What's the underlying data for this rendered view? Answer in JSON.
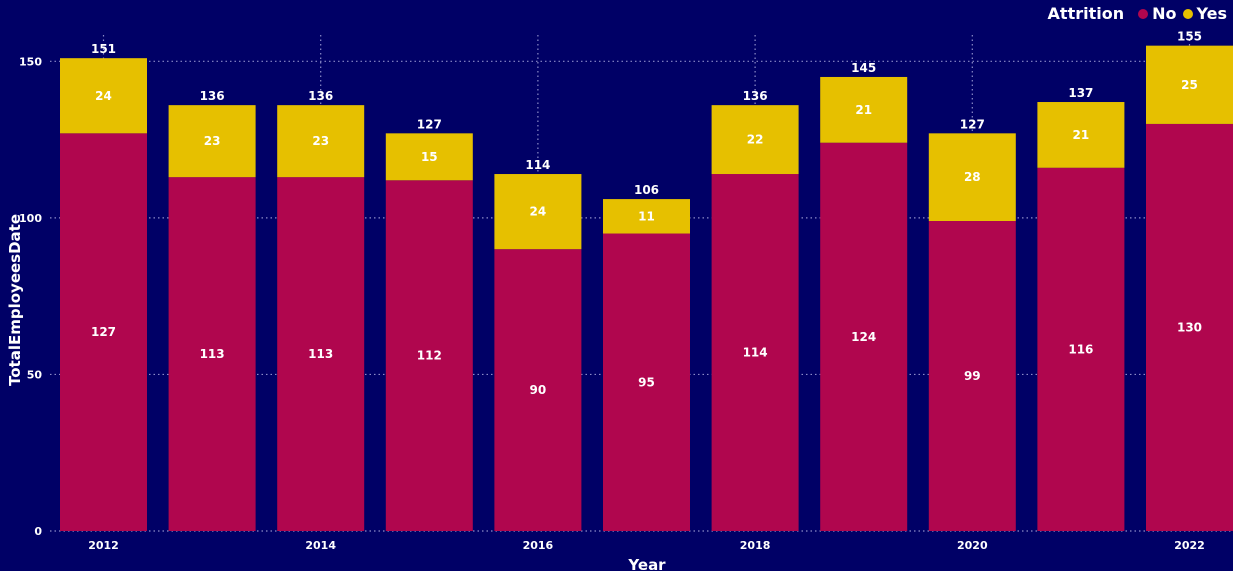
{
  "chart_data": {
    "type": "bar",
    "stacked": true,
    "xlabel": "Year",
    "ylabel": "TotalEmployeesDate",
    "ylim": [
      0,
      160
    ],
    "yticks": [
      0,
      50,
      100,
      150
    ],
    "categories": [
      "2012",
      "2013",
      "2014",
      "2015",
      "2016",
      "2017",
      "2018",
      "2019",
      "2020",
      "2021",
      "2022"
    ],
    "xtick_labels": [
      "2012",
      "",
      "2014",
      "",
      "2016",
      "",
      "2018",
      "",
      "2020",
      "",
      "2022"
    ],
    "legend_title": "Attrition",
    "legend_position": "top-right",
    "grid": true,
    "series": [
      {
        "name": "No",
        "color": "#b0064e",
        "values": [
          127,
          113,
          113,
          112,
          90,
          95,
          114,
          124,
          99,
          116,
          130
        ]
      },
      {
        "name": "Yes",
        "color": "#e6c000",
        "values": [
          24,
          23,
          23,
          15,
          24,
          11,
          22,
          21,
          28,
          21,
          25
        ]
      }
    ],
    "totals": [
      151,
      136,
      136,
      127,
      114,
      106,
      136,
      145,
      127,
      137,
      155
    ]
  },
  "colors": {
    "background": "#000066",
    "grid": "#8c8cc8",
    "text": "#ffffff"
  }
}
